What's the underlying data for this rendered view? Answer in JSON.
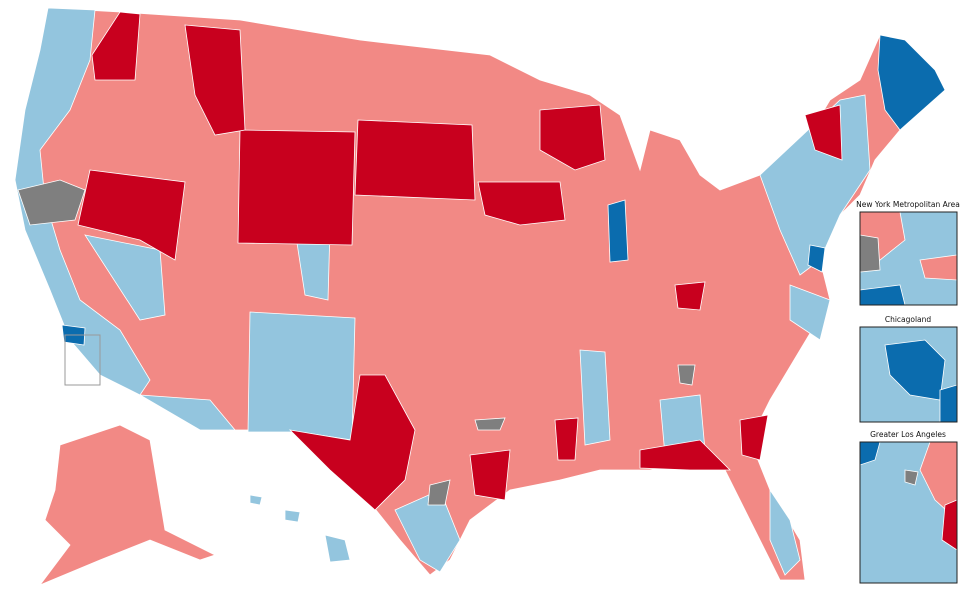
{
  "insets": [
    {
      "title": "New York Metropolitan Area"
    },
    {
      "title": "Chicagoland"
    },
    {
      "title": "Greater Los Angeles"
    }
  ]
}
